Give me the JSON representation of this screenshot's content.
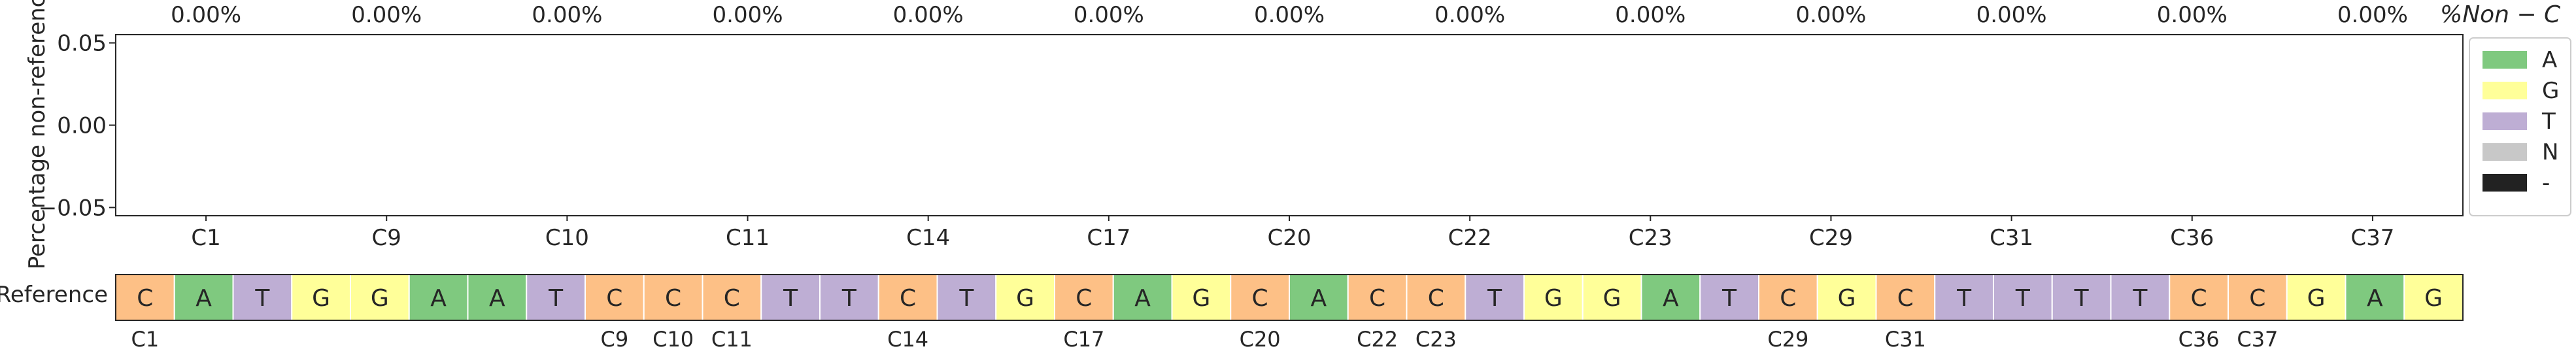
{
  "chart_data": {
    "type": "bar",
    "ylabel": "Percentage non-reference",
    "top_right_label": "%Non − C",
    "yticks": [
      "0.05",
      "0.00",
      "−0.05"
    ],
    "categories": [
      "C1",
      "C9",
      "C10",
      "C11",
      "C14",
      "C17",
      "C20",
      "C22",
      "C23",
      "C29",
      "C31",
      "C36",
      "C37"
    ],
    "percent_labels": [
      "0.00%",
      "0.00%",
      "0.00%",
      "0.00%",
      "0.00%",
      "0.00%",
      "0.00%",
      "0.00%",
      "0.00%",
      "0.00%",
      "0.00%",
      "0.00%",
      "0.00%"
    ],
    "series": [
      {
        "name": "A",
        "color": "#7fc97f",
        "values": [
          0,
          0,
          0,
          0,
          0,
          0,
          0,
          0,
          0,
          0,
          0,
          0,
          0
        ]
      },
      {
        "name": "G",
        "color": "#ffff99",
        "values": [
          0,
          0,
          0,
          0,
          0,
          0,
          0,
          0,
          0,
          0,
          0,
          0,
          0
        ]
      },
      {
        "name": "T",
        "color": "#beaed4",
        "values": [
          0,
          0,
          0,
          0,
          0,
          0,
          0,
          0,
          0,
          0,
          0,
          0,
          0
        ]
      },
      {
        "name": "N",
        "color": "#c8c8c8",
        "values": [
          0,
          0,
          0,
          0,
          0,
          0,
          0,
          0,
          0,
          0,
          0,
          0,
          0
        ]
      },
      {
        "name": "-",
        "color": "#222222",
        "values": [
          0,
          0,
          0,
          0,
          0,
          0,
          0,
          0,
          0,
          0,
          0,
          0,
          0
        ]
      }
    ],
    "legend_position": "right",
    "grid": false
  },
  "reference": {
    "label": "Reference",
    "sequence": [
      "C",
      "A",
      "T",
      "G",
      "G",
      "A",
      "A",
      "T",
      "C",
      "C",
      "C",
      "T",
      "T",
      "C",
      "T",
      "G",
      "C",
      "A",
      "G",
      "C",
      "A",
      "C",
      "C",
      "T",
      "G",
      "G",
      "A",
      "T",
      "C",
      "G",
      "C",
      "T",
      "T",
      "T",
      "T",
      "C",
      "C",
      "G",
      "A",
      "G"
    ],
    "colors": {
      "A": "#7fc97f",
      "C": "#fdc086",
      "G": "#ffff99",
      "T": "#beaed4"
    },
    "position_labels": [
      {
        "label": "C1",
        "index": 0
      },
      {
        "label": "C9",
        "index": 8
      },
      {
        "label": "C10",
        "index": 9
      },
      {
        "label": "C11",
        "index": 10
      },
      {
        "label": "C14",
        "index": 13
      },
      {
        "label": "C17",
        "index": 16
      },
      {
        "label": "C20",
        "index": 19
      },
      {
        "label": "C22",
        "index": 21
      },
      {
        "label": "C23",
        "index": 22
      },
      {
        "label": "C29",
        "index": 28
      },
      {
        "label": "C31",
        "index": 30
      },
      {
        "label": "C36",
        "index": 35
      },
      {
        "label": "C37",
        "index": 36
      }
    ]
  }
}
